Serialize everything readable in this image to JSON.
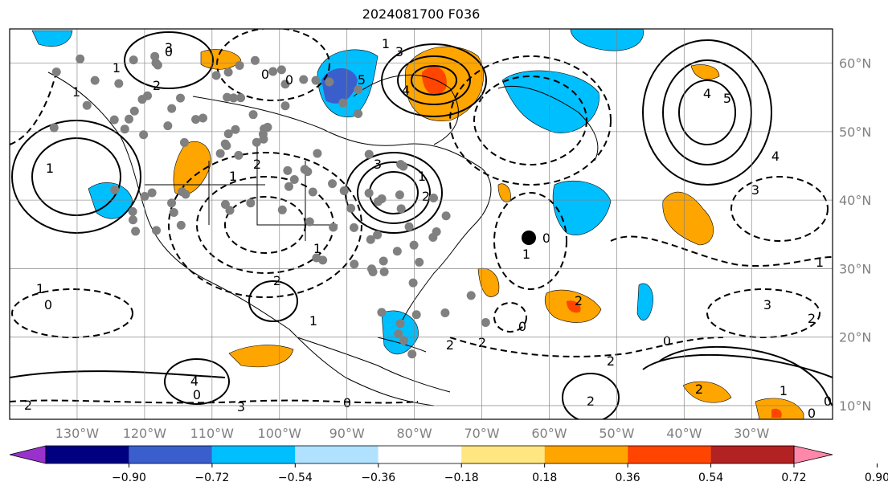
{
  "title": "2024081700 F036",
  "map": {
    "lon_range": [
      -140,
      -18
    ],
    "lat_range": [
      8,
      65
    ],
    "lon_labels": [
      "130°W",
      "120°W",
      "110°W",
      "100°W",
      "90°W",
      "80°W",
      "70°W",
      "60°W",
      "50°W",
      "40°W",
      "30°W"
    ],
    "lat_labels": [
      "60°N",
      "50°N",
      "40°N",
      "30°N",
      "20°N",
      "10°N"
    ],
    "grid": true,
    "contour_labels": [
      "3",
      "2",
      "1",
      "0",
      "0",
      "3",
      "4",
      "5",
      "1",
      "2",
      "3",
      "4",
      "5",
      "4",
      "3",
      "2",
      "1",
      "0",
      "4",
      "2",
      "1",
      "0",
      "2",
      "3",
      "2",
      "1",
      "0",
      "1",
      "1",
      "2",
      "3",
      "2",
      "0",
      "2",
      "0",
      "1",
      "1",
      "1",
      "2",
      "1",
      "0",
      "1",
      "2",
      "2",
      "0",
      "0",
      "0"
    ],
    "shading_colors": {
      "positive_light": "#ffa500",
      "positive_strong": "#ff4500",
      "negative_light": "#00bfff",
      "negative_strong": "#3a5fcd"
    },
    "marker_color": "#808080",
    "highlight_marker_color": "#000000"
  },
  "colorbar": {
    "colors": [
      "#9932cc",
      "#000080",
      "#3a5fcd",
      "#00bfff",
      "#b0e2ff",
      "#ffffff",
      "#ffe680",
      "#ffa500",
      "#ff4500",
      "#b22222",
      "#ff88aa"
    ],
    "tick_labels": [
      "−0.90",
      "−0.72",
      "−0.54",
      "−0.36",
      "−0.18",
      "0.18",
      "0.36",
      "0.54",
      "0.72",
      "0.90"
    ]
  }
}
